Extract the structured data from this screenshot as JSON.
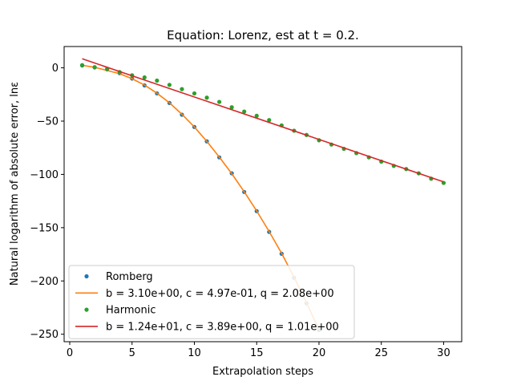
{
  "chart_data": {
    "type": "scatter",
    "title": "Equation: Lorenz, est at t = 0.2.",
    "xlabel": "Extrapolation steps",
    "ylabel": "Natural logarithm of absolute error, lnε",
    "xlim": [
      -0.45,
      31.45
    ],
    "ylim": [
      -257,
      20
    ],
    "xticks": [
      0,
      5,
      10,
      15,
      20,
      25,
      30
    ],
    "yticks": [
      0,
      -50,
      -100,
      -150,
      -200,
      -250
    ],
    "grid": false,
    "legend_position": "bottom-left",
    "series": [
      {
        "name": "Romberg",
        "kind": "points",
        "color": "#1f77b4",
        "x": [
          1,
          2,
          3,
          4,
          5,
          6,
          7,
          8,
          9,
          10,
          11,
          12,
          13,
          14,
          15,
          16,
          17,
          18,
          19,
          20
        ],
        "y": [
          2.2,
          0.4,
          -1.5,
          -5,
          -10,
          -16.5,
          -24,
          -33,
          -44,
          -55.5,
          -69,
          -84,
          -99,
          -116.5,
          -134.5,
          -154,
          -174.5,
          -197,
          -221,
          -246
        ]
      },
      {
        "name": "b = 3.10e+00, c = 4.97e-01, q = 2.08e+00",
        "kind": "line",
        "color": "#ff7f0e",
        "x": [
          1,
          2,
          3,
          4,
          5,
          6,
          7,
          8,
          9,
          10,
          11,
          12,
          13,
          14,
          15,
          16,
          17,
          18,
          19,
          20
        ],
        "y": [
          2.4,
          0.5,
          -2.5,
          -5.5,
          -10.2,
          -16.2,
          -23.8,
          -32.8,
          -43.6,
          -55.5,
          -69,
          -83.7,
          -99.3,
          -116.3,
          -134.3,
          -153.6,
          -174,
          -196.5,
          -220.5,
          -246
        ]
      },
      {
        "name": "Harmonic",
        "kind": "points",
        "color": "#2ca02c",
        "x": [
          1,
          2,
          3,
          4,
          5,
          6,
          7,
          8,
          9,
          10,
          11,
          12,
          13,
          14,
          15,
          16,
          17,
          18,
          19,
          20,
          21,
          22,
          23,
          24,
          25,
          26,
          27,
          28,
          29,
          30
        ],
        "y": [
          2.5,
          0.6,
          -1,
          -4,
          -7,
          -9,
          -12,
          -16,
          -20,
          -24,
          -28,
          -32,
          -37,
          -41,
          -45,
          -49,
          -54,
          -59,
          -63,
          -68,
          -72,
          -76,
          -80,
          -84,
          -88,
          -92,
          -95,
          -99,
          -104,
          -108
        ]
      },
      {
        "name": "b = 1.24e+01, c = 3.89e+00, q = 1.01e+00",
        "kind": "line",
        "color": "#d62728",
        "x": [
          1,
          30
        ],
        "y": [
          8.5,
          -107
        ]
      }
    ]
  }
}
